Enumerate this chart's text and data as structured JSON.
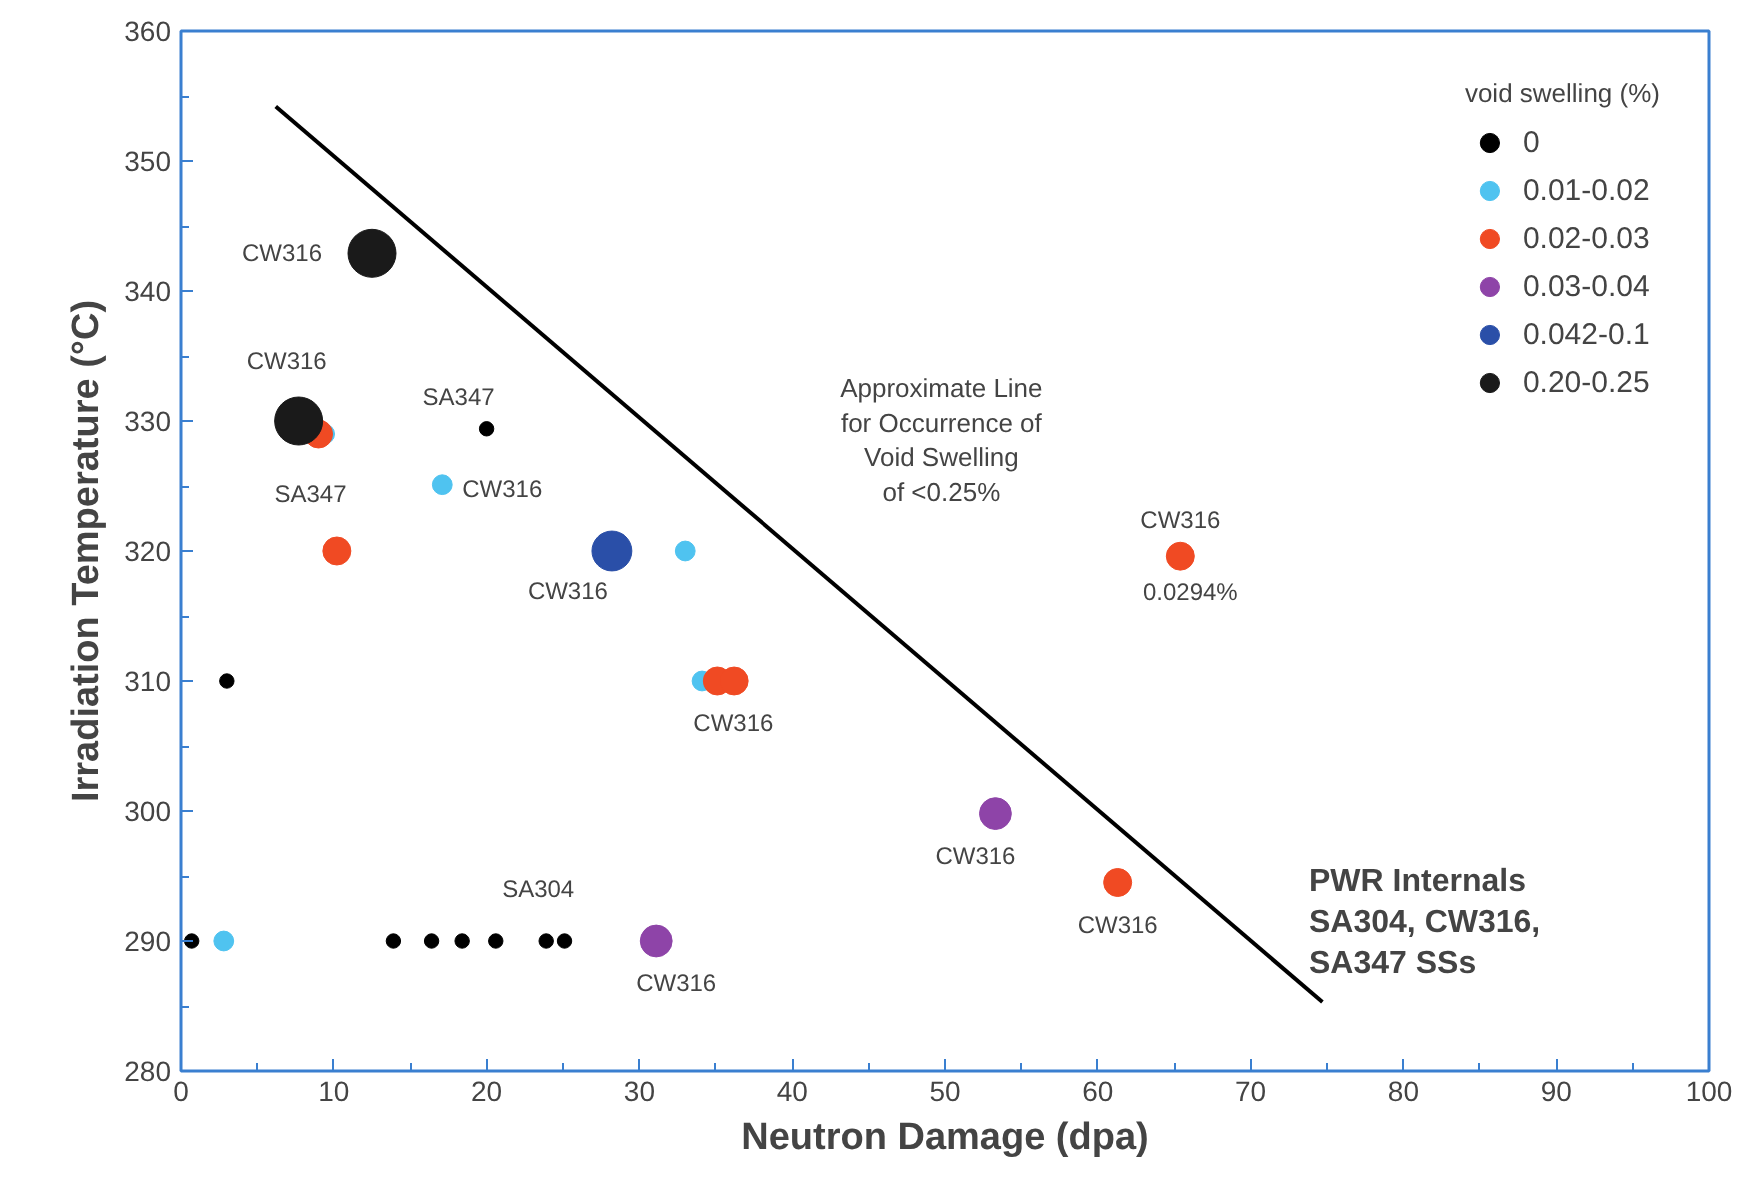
{
  "chart_data": {
    "type": "bubble",
    "xlabel": "Neutron Damage (dpa)",
    "ylabel": "Irradiation Temperature (°C)",
    "legend_title": "void swelling (%)",
    "legend": "top right",
    "grid": false,
    "xlim": [
      0,
      100
    ],
    "xticks": [
      0,
      10,
      20,
      30,
      40,
      50,
      60,
      70,
      80,
      90,
      100
    ],
    "ylim": [
      280,
      360
    ],
    "yticks": [
      280,
      290,
      300,
      310,
      320,
      330,
      340,
      350,
      360
    ],
    "series": [
      {
        "name": "0",
        "color": "#000000",
        "x": [
          3,
          20,
          0.7,
          13.9,
          16.4,
          18.4,
          20.6,
          23.9,
          25.1
        ],
        "values": [
          310,
          329.4,
          290,
          290,
          290,
          290,
          290,
          290,
          290
        ],
        "sizes": [
          0.09,
          0.09,
          0.09,
          0.09,
          0.09,
          0.09,
          0.09,
          0.09,
          0.09
        ]
      },
      {
        "name": "0.01-0.02",
        "color": "#4fc3f0",
        "x": [
          2.8,
          9.4,
          17.1,
          33.0,
          34.1
        ],
        "values": [
          290,
          329,
          325.1,
          320,
          310
        ],
        "sizes": [
          0.17,
          0.17,
          0.17,
          0.17,
          0.17
        ]
      },
      {
        "name": "0.02-0.03",
        "color": "#f04a23",
        "x": [
          9.0,
          10.2,
          35.1,
          36.2,
          65.4,
          61.3
        ],
        "values": [
          329,
          320,
          310,
          310,
          319.6,
          294.5
        ],
        "sizes": [
          0.34,
          0.34,
          0.34,
          0.34,
          0.34,
          0.34
        ]
      },
      {
        "name": "0.03-0.04",
        "color": "#8e44a8",
        "x": [
          31.1,
          53.3
        ],
        "values": [
          290,
          299.8
        ],
        "sizes": [
          0.44,
          0.44
        ]
      },
      {
        "name": "0.042-0.1",
        "color": "#2a4fa8",
        "x": [
          28.2
        ],
        "values": [
          320
        ],
        "sizes": [
          0.69
        ]
      },
      {
        "name": "0.20-0.25",
        "color": "#1a1a1a",
        "x": [
          12.5,
          7.7
        ],
        "values": [
          342.9,
          330
        ],
        "sizes": [
          1,
          1
        ]
      },
      {
        "type": "line",
        "color": "#000000",
        "x": [
          6.2,
          74.7
        ],
        "values": [
          354.2,
          285.3
        ]
      }
    ],
    "annotations": [
      {
        "text": "CW316",
        "x": 12.5,
        "y": 342.9
      },
      {
        "text": "CW316",
        "x": 7.7,
        "y": 330
      },
      {
        "text": "SA347",
        "x": 9.0,
        "y": 329
      },
      {
        "text": "SA347",
        "x": 20,
        "y": 329.4
      },
      {
        "text": "CW316",
        "x": 17.1,
        "y": 325.1
      },
      {
        "text": "CW316",
        "x": 28.2,
        "y": 320
      },
      {
        "text": "CW316",
        "x": 35.1,
        "y": 310
      },
      {
        "text": "Approximate Line\nfor Occurrence of\nVoid Swelling\nof <0.25%",
        "x": 40.6,
        "y": 319.6
      },
      {
        "text": "CW316",
        "x": 65.4,
        "y": 319.6
      },
      {
        "text": "0.0294%",
        "x": 65.4,
        "y": 319.6
      },
      {
        "text": "CW316",
        "x": 53.3,
        "y": 299.8
      },
      {
        "text": "CW316",
        "x": 61.3,
        "y": 294.5
      },
      {
        "text": "CW316",
        "x": 31.1,
        "y": 290
      },
      {
        "text": "SA304",
        "x": 23.9,
        "y": 290
      },
      "PWR  Internals\nSA304,  CW316,\nSA347  SSs"
    ]
  }
}
